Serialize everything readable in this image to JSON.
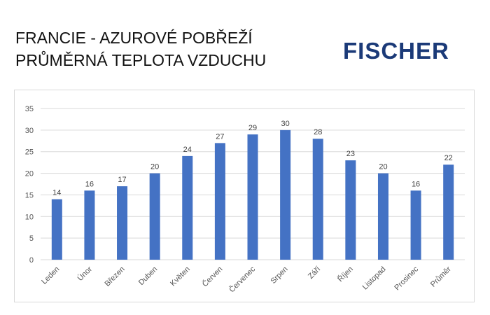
{
  "header": {
    "title_line1": "FRANCIE - AZUROVÉ POBŘEŽÍ",
    "title_line2": "PRŮMĚRNÁ TEPLOTA VZDUCHU",
    "logo_text": "FISCHER"
  },
  "colors": {
    "bar": "#4472c4",
    "gridline": "#d9d9d9",
    "logo": "#1b3a78"
  },
  "chart_data": {
    "type": "bar",
    "title": "FRANCIE - AZUROVÉ POBŘEŽÍ PRŮMĚRNÁ TEPLOTA VZDUCHU",
    "categories": [
      "Leden",
      "Únor",
      "Březen",
      "Duben",
      "Květen",
      "Červen",
      "Červenec",
      "Srpen",
      "Září",
      "Říjen",
      "Listopad",
      "Prosinec",
      "Průměr"
    ],
    "values": [
      14,
      16,
      17,
      20,
      24,
      27,
      29,
      30,
      28,
      23,
      20,
      16,
      22
    ],
    "xlabel": "",
    "ylabel": "",
    "ylim": [
      0,
      35
    ],
    "yticks": [
      0,
      5,
      10,
      15,
      20,
      25,
      30,
      35
    ],
    "grid": true,
    "legend": "none",
    "data_labels": true
  }
}
